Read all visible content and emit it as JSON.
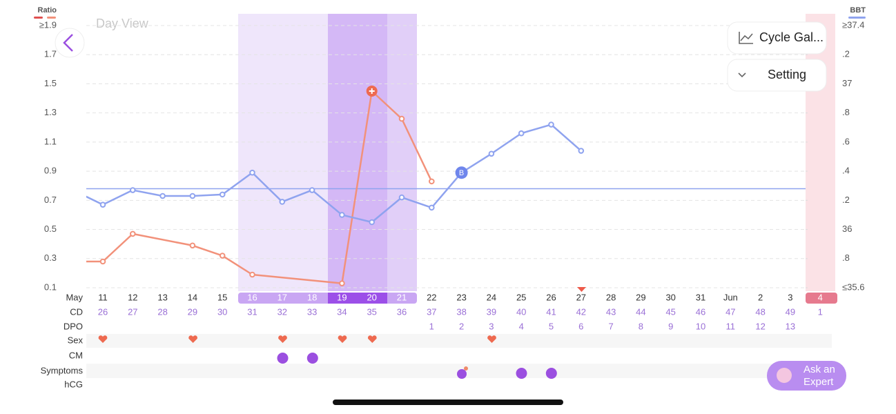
{
  "header": {
    "view": "Day View"
  },
  "buttons": {
    "cycle": "Cycle Gal...",
    "setting": "Setting",
    "expert": [
      "Ask an",
      "Expert"
    ]
  },
  "chart_data": {
    "type": "line",
    "categories": [
      null,
      "11",
      "12",
      "13",
      "14",
      "15",
      "16",
      "17",
      "18",
      "19",
      "20",
      "21",
      "22",
      "23",
      "24",
      "25",
      "26",
      "27",
      "28",
      "29",
      "30",
      "31",
      "Jun",
      "2",
      "3",
      "4"
    ],
    "ylim": [
      0.1,
      1.9
    ],
    "yticks": [
      {
        "value": 1.9,
        "label": "≥1.9"
      },
      1.7,
      1.5,
      1.3,
      1.1,
      0.9,
      0.7,
      0.5,
      0.3,
      0.1
    ],
    "y2lim": [
      35.6,
      37.4
    ],
    "y2ticks": [
      {
        "value": 37.4,
        "label": "≥37.4"
      },
      {
        "value": 37.2,
        "label": ".2"
      },
      37,
      {
        "value": 36.8,
        "label": ".8"
      },
      {
        "value": 36.6,
        "label": ".6"
      },
      {
        "value": 36.4,
        "label": ".4"
      },
      {
        "value": 36.2,
        "label": ".2"
      },
      36,
      {
        "value": 35.8,
        "label": ".8"
      },
      {
        "value": 35.6,
        "label": "≤35.6"
      }
    ],
    "grid": true,
    "series": [
      {
        "name": "Ratio",
        "color": "#f2917a",
        "values": [
          0.28,
          0.28,
          0.47,
          null,
          0.39,
          0.32,
          0.19,
          null,
          null,
          0.13,
          1.45,
          1.26,
          0.83,
          null,
          null,
          null,
          null,
          null,
          null,
          null,
          null,
          null,
          null,
          null,
          null,
          null
        ]
      },
      {
        "name": "BBT",
        "color": "#8fa3ef",
        "axis": "y2",
        "values": [
          36.27,
          36.17,
          36.27,
          36.23,
          36.23,
          36.24,
          36.39,
          36.19,
          36.27,
          36.1,
          36.05,
          36.22,
          36.15,
          36.39,
          36.52,
          36.66,
          36.72,
          36.54,
          null,
          null,
          null,
          null,
          null,
          null,
          null,
          null
        ]
      }
    ],
    "cover_line": 36.28,
    "bbt_marker": "B"
  },
  "rows": {
    "labels": [
      "May",
      "CD",
      "DPO",
      "Sex",
      "CM",
      "Symptoms",
      "hCG"
    ],
    "cd": [
      null,
      "26",
      "27",
      "28",
      "29",
      "30",
      "31",
      "32",
      "33",
      "34",
      "35",
      "36",
      "37",
      "38",
      "39",
      "40",
      "41",
      "42",
      "43",
      "44",
      "45",
      "46",
      "47",
      "48",
      "49",
      "1"
    ],
    "dpo": [
      null,
      null,
      null,
      null,
      null,
      null,
      null,
      null,
      null,
      null,
      null,
      null,
      "1",
      "2",
      "3",
      "4",
      "5",
      "6",
      "7",
      "8",
      "9",
      "10",
      "11",
      "12",
      "13",
      null
    ]
  }
}
